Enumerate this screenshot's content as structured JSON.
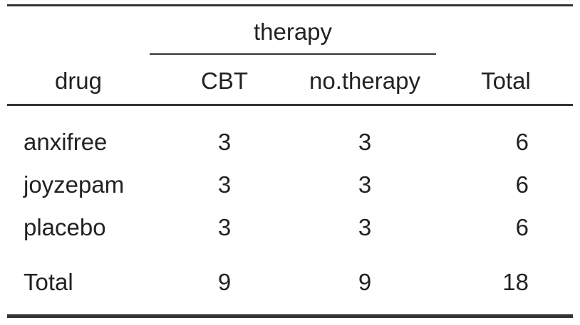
{
  "header": {
    "spanner": "therapy",
    "columns": [
      "drug",
      "CBT",
      "no.therapy",
      "Total"
    ]
  },
  "rows": [
    {
      "label": "anxifree",
      "cbt": "3",
      "no_therapy": "3",
      "total": "6"
    },
    {
      "label": "joyzepam",
      "cbt": "3",
      "no_therapy": "3",
      "total": "6"
    },
    {
      "label": "placebo",
      "cbt": "3",
      "no_therapy": "3",
      "total": "6"
    }
  ],
  "totals": {
    "label": "Total",
    "cbt": "9",
    "no_therapy": "9",
    "total": "18"
  }
}
